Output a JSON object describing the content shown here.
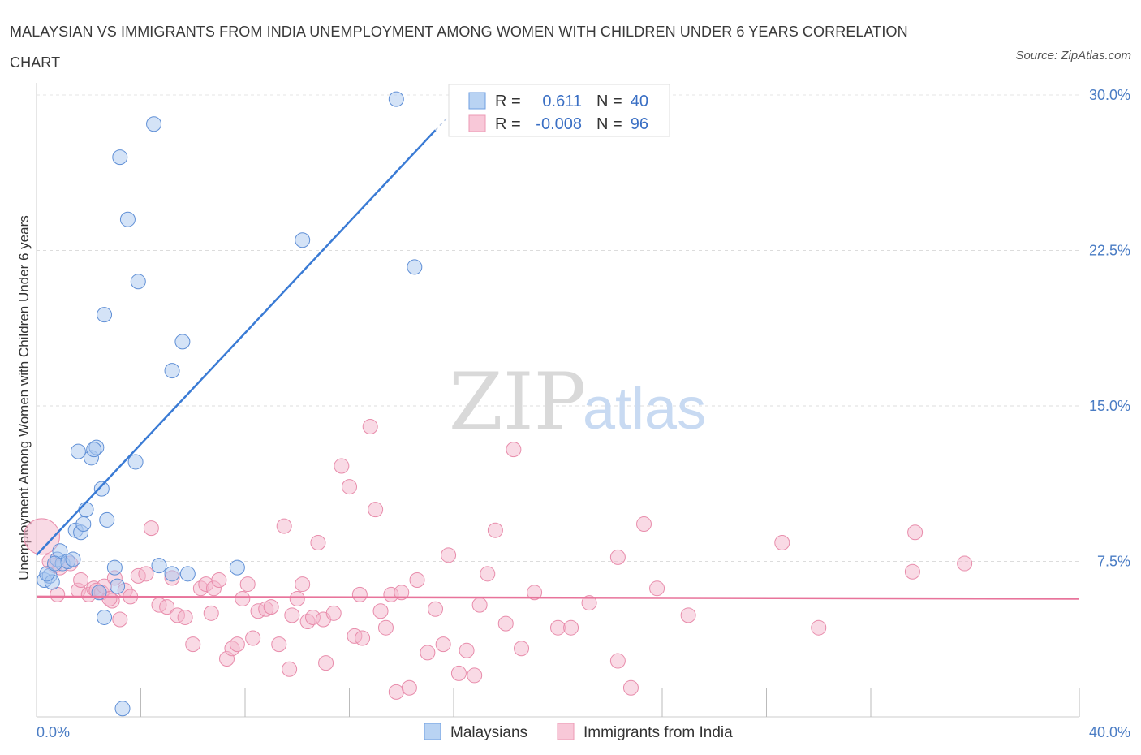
{
  "title": "MALAYSIAN VS IMMIGRANTS FROM INDIA UNEMPLOYMENT AMONG WOMEN WITH CHILDREN UNDER 6 YEARS CORRELATION CHART",
  "source": "Source: ZipAtlas.com",
  "watermark": {
    "zip": "ZIP",
    "atlas": "atlas"
  },
  "chart_data": {
    "type": "scatter",
    "ylabel": "Unemployment Among Women with Children Under 6 years",
    "xlim": [
      0,
      40
    ],
    "ylim": [
      0,
      30
    ],
    "x_tick_labels": [
      "0.0%",
      "40.0%"
    ],
    "y_ticks": [
      {
        "value": 7.5,
        "label": "7.5%"
      },
      {
        "value": 15.0,
        "label": "15.0%"
      },
      {
        "value": 22.5,
        "label": "22.5%"
      },
      {
        "value": 30.0,
        "label": "30.0%"
      }
    ],
    "colors": {
      "malaysians": "#a9c8f0",
      "malaysians_line": "#3a7bd5",
      "india": "#f4b6cb",
      "india_line": "#e8749b"
    },
    "legend": {
      "rows": [
        {
          "r_label": "R =",
          "r_value": "0.611",
          "n_label": "N =",
          "n_value": "40"
        },
        {
          "r_label": "R =",
          "r_value": "-0.008",
          "n_label": "N =",
          "n_value": "96"
        }
      ]
    },
    "series": [
      {
        "name": "Malaysians",
        "trend": {
          "x": [
            0.0,
            15.3
          ],
          "y": [
            7.8,
            28.3
          ]
        },
        "points": [
          [
            0.3,
            6.6
          ],
          [
            0.5,
            6.8
          ],
          [
            0.6,
            6.5
          ],
          [
            0.8,
            7.6
          ],
          [
            1.0,
            7.4
          ],
          [
            0.9,
            8.0
          ],
          [
            1.2,
            7.5
          ],
          [
            1.4,
            7.6
          ],
          [
            1.5,
            9.0
          ],
          [
            1.7,
            8.9
          ],
          [
            1.8,
            9.3
          ],
          [
            1.9,
            10.0
          ],
          [
            2.1,
            12.5
          ],
          [
            2.3,
            13.0
          ],
          [
            2.2,
            12.9
          ],
          [
            2.4,
            6.0
          ],
          [
            2.5,
            11.0
          ],
          [
            2.6,
            4.8
          ],
          [
            2.7,
            9.5
          ],
          [
            3.0,
            7.2
          ],
          [
            3.1,
            6.3
          ],
          [
            3.3,
            0.4
          ],
          [
            3.2,
            27.0
          ],
          [
            3.5,
            24.0
          ],
          [
            3.8,
            12.3
          ],
          [
            3.9,
            21.0
          ],
          [
            4.5,
            28.6
          ],
          [
            4.7,
            7.3
          ],
          [
            5.2,
            16.7
          ],
          [
            5.2,
            6.9
          ],
          [
            5.6,
            18.1
          ],
          [
            5.8,
            6.9
          ],
          [
            2.6,
            19.4
          ],
          [
            7.7,
            7.2
          ],
          [
            10.2,
            23.0
          ],
          [
            13.8,
            29.8
          ],
          [
            14.5,
            21.7
          ],
          [
            0.4,
            6.9
          ],
          [
            1.6,
            12.8
          ],
          [
            0.7,
            7.4
          ]
        ]
      },
      {
        "name": "Immigrants from India",
        "trend": {
          "x": [
            0.0,
            40.0
          ],
          "y": [
            5.8,
            5.7
          ]
        },
        "points": [
          [
            0.2,
            8.7
          ],
          [
            0.5,
            7.5
          ],
          [
            0.7,
            7.3
          ],
          [
            0.9,
            7.2
          ],
          [
            1.3,
            7.4
          ],
          [
            1.6,
            6.1
          ],
          [
            1.7,
            6.6
          ],
          [
            2.0,
            5.9
          ],
          [
            2.2,
            6.2
          ],
          [
            2.3,
            6.1
          ],
          [
            2.5,
            6.0
          ],
          [
            2.6,
            6.3
          ],
          [
            2.9,
            5.6
          ],
          [
            3.0,
            6.7
          ],
          [
            3.2,
            4.7
          ],
          [
            3.4,
            6.1
          ],
          [
            3.6,
            5.8
          ],
          [
            3.9,
            6.8
          ],
          [
            4.2,
            6.9
          ],
          [
            4.4,
            9.1
          ],
          [
            4.7,
            5.4
          ],
          [
            5.0,
            5.3
          ],
          [
            5.2,
            6.7
          ],
          [
            5.4,
            4.9
          ],
          [
            5.7,
            4.8
          ],
          [
            6.0,
            3.5
          ],
          [
            6.3,
            6.2
          ],
          [
            6.5,
            6.4
          ],
          [
            6.7,
            5.0
          ],
          [
            6.8,
            6.2
          ],
          [
            7.0,
            6.6
          ],
          [
            7.3,
            2.8
          ],
          [
            7.5,
            3.3
          ],
          [
            7.7,
            3.5
          ],
          [
            7.9,
            5.7
          ],
          [
            8.1,
            6.4
          ],
          [
            8.3,
            3.8
          ],
          [
            8.5,
            5.1
          ],
          [
            8.8,
            5.2
          ],
          [
            9.0,
            5.3
          ],
          [
            9.3,
            3.5
          ],
          [
            9.5,
            9.2
          ],
          [
            9.7,
            2.3
          ],
          [
            9.8,
            4.9
          ],
          [
            10.0,
            5.7
          ],
          [
            10.2,
            6.4
          ],
          [
            10.4,
            4.6
          ],
          [
            10.6,
            4.8
          ],
          [
            10.8,
            8.4
          ],
          [
            11.0,
            4.7
          ],
          [
            11.1,
            2.6
          ],
          [
            11.4,
            5.0
          ],
          [
            11.7,
            12.1
          ],
          [
            12.0,
            11.1
          ],
          [
            12.2,
            3.9
          ],
          [
            12.4,
            5.9
          ],
          [
            12.5,
            3.8
          ],
          [
            12.8,
            14.0
          ],
          [
            13.0,
            10.0
          ],
          [
            13.2,
            5.1
          ],
          [
            13.4,
            4.3
          ],
          [
            13.6,
            5.9
          ],
          [
            13.8,
            1.2
          ],
          [
            14.0,
            6.0
          ],
          [
            14.3,
            1.4
          ],
          [
            14.6,
            6.6
          ],
          [
            15.0,
            3.1
          ],
          [
            15.3,
            5.2
          ],
          [
            15.6,
            3.5
          ],
          [
            15.8,
            7.8
          ],
          [
            16.2,
            2.1
          ],
          [
            16.5,
            3.2
          ],
          [
            16.8,
            2.0
          ],
          [
            17.0,
            5.4
          ],
          [
            17.3,
            6.9
          ],
          [
            17.6,
            9.0
          ],
          [
            18.0,
            4.5
          ],
          [
            18.3,
            12.9
          ],
          [
            18.6,
            3.3
          ],
          [
            19.1,
            6.0
          ],
          [
            20.0,
            4.3
          ],
          [
            20.5,
            4.3
          ],
          [
            21.2,
            5.5
          ],
          [
            22.3,
            7.7
          ],
          [
            22.3,
            2.7
          ],
          [
            22.8,
            1.4
          ],
          [
            23.3,
            9.3
          ],
          [
            23.8,
            6.2
          ],
          [
            25.0,
            4.9
          ],
          [
            28.6,
            8.4
          ],
          [
            30.0,
            4.3
          ],
          [
            33.6,
            7.0
          ],
          [
            33.7,
            8.9
          ],
          [
            35.6,
            7.4
          ],
          [
            0.8,
            5.9
          ],
          [
            2.8,
            5.7
          ]
        ]
      }
    ]
  }
}
